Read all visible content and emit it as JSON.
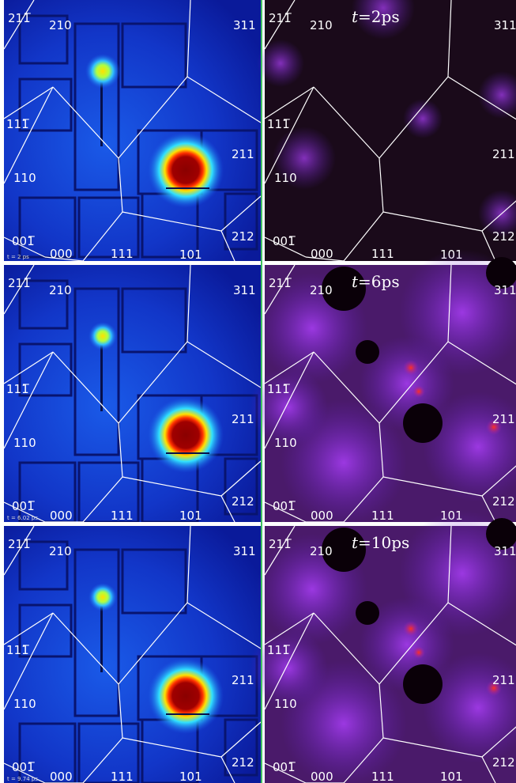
{
  "time_symbol": "t",
  "zone_labels": [
    "211̅",
    "210",
    "311",
    "111̅",
    "211",
    "110",
    "001̅",
    "000",
    "111",
    "101",
    "212"
  ],
  "rows": [
    {
      "small_label": "t = 2 ps",
      "time_label": "=2ps"
    },
    {
      "small_label": "t = 6.02 ps",
      "time_label": "=6ps"
    },
    {
      "small_label": "t = 9.74 ps",
      "time_label": "=10ps"
    }
  ]
}
